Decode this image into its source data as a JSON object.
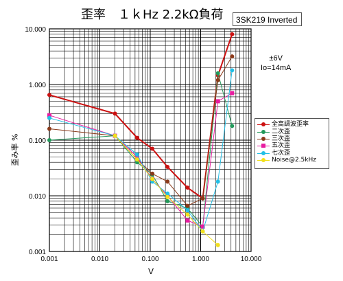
{
  "chart_data": {
    "type": "line",
    "title": "歪率　１ｋHz 2.2kΩ負荷",
    "subtitle": "3SK219 Inverted",
    "note_lines": [
      "±6V",
      "Io=14mA"
    ],
    "xlabel": "V",
    "ylabel": "歪み率 %",
    "x_scale": "log",
    "y_scale": "log",
    "xlim": [
      0.001,
      10
    ],
    "ylim": [
      0.001,
      10
    ],
    "x_ticks": [
      "0.001",
      "0.010",
      "0.100",
      "1.000",
      "10.000"
    ],
    "y_ticks": [
      "10.000",
      "1.000",
      "0.100",
      "0.010",
      "0.001"
    ],
    "grid": true,
    "legend_position": "right",
    "series": [
      {
        "name": "全高調波歪率",
        "color": "#cc1111",
        "marker": "circle",
        "x": [
          0.001,
          0.02,
          0.055,
          0.11,
          0.22,
          0.55,
          1.1,
          2.2,
          4.2
        ],
        "y": [
          0.65,
          0.3,
          0.11,
          0.07,
          0.033,
          0.014,
          0.009,
          1.45,
          8.0
        ]
      },
      {
        "name": "二次歪",
        "color": "#22995a",
        "marker": "circle",
        "x": [
          0.001,
          0.02,
          0.055,
          0.11,
          0.22,
          0.55,
          1.1,
          2.2,
          4.2
        ],
        "y": [
          0.1,
          0.12,
          0.04,
          0.024,
          0.008,
          0.006,
          0.0028,
          1.6,
          0.18
        ]
      },
      {
        "name": "三次歪",
        "color": "#8b3a1a",
        "marker": "circle",
        "x": [
          0.001,
          0.02,
          0.055,
          0.11,
          0.22,
          0.55,
          1.1,
          2.2,
          4.2
        ],
        "y": [
          0.16,
          0.12,
          0.045,
          0.025,
          0.018,
          0.0066,
          0.009,
          1.2,
          3.2
        ]
      },
      {
        "name": "五次歪",
        "color": "#e81ca0",
        "marker": "square",
        "x": [
          0.001,
          0.02,
          0.055,
          0.11,
          0.22,
          0.55,
          1.1,
          2.2,
          4.2
        ],
        "y": [
          0.28,
          0.12,
          0.05,
          0.02,
          0.01,
          0.0036,
          0.0028,
          0.5,
          0.7
        ]
      },
      {
        "name": "七次歪",
        "color": "#22bfe6",
        "marker": "circle",
        "x": [
          0.001,
          0.02,
          0.055,
          0.11,
          0.22,
          0.55,
          1.1,
          2.2,
          4.2
        ],
        "y": [
          0.25,
          0.12,
          0.055,
          0.018,
          0.011,
          0.0055,
          0.0023,
          0.018,
          1.8
        ]
      },
      {
        "name": "Noise@2.5kHz",
        "color": "#f2e01b",
        "marker": "circle",
        "x": [
          0.02,
          0.055,
          0.11,
          0.22,
          0.55,
          1.1,
          2.2
        ],
        "y": [
          0.12,
          0.045,
          0.02,
          0.0095,
          0.0046,
          0.0023,
          0.0013
        ]
      }
    ]
  }
}
